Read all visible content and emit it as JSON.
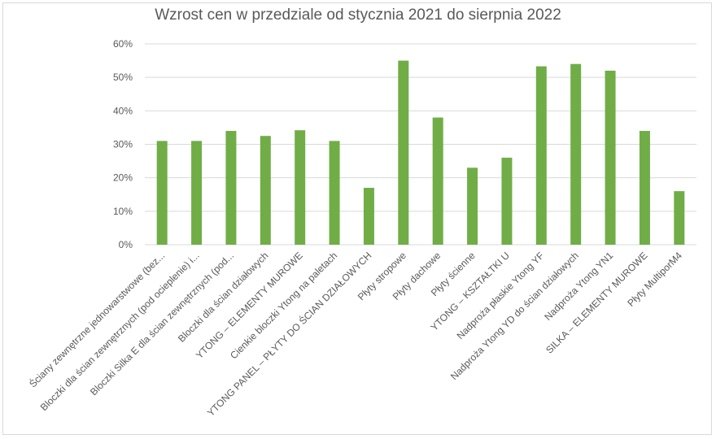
{
  "chart_data": {
    "type": "bar",
    "title": "Wzrost cen w przedziale od stycznia 2021 do sierpnia 2022",
    "xlabel": "",
    "ylabel": "",
    "categories": [
      "Ściany zewnętrzne jednowarstwowe (bez...",
      "Bloczki dla ścian zewnętrznych (pod ocieplenie) i...",
      "Bloczki Silka E dla ścian zewnętrznych (pod...",
      "Bloczki dla ścian działowych",
      "YTONG – ELEMENTY MUROWE",
      "Cienkie bloczki Ytong na paletach",
      "YTONG PANEL – PŁYTY DO ŚCIAN DZIAŁOWYCH",
      "Płyty stropowe",
      "Płyty dachowe",
      "Płyty ścienne",
      "YTONG – KSZTAŁTKI U",
      "Nadproża płaskie Ytong YF",
      "Nadproża Ytong YD do ścian działowych",
      "Nadproża Ytong YN1",
      "SILKA – ELEMENTY MUROWE",
      "Płyty MultiporM4"
    ],
    "values": [
      31,
      31,
      34,
      32.5,
      34.2,
      31,
      17,
      55,
      38,
      23,
      26,
      53.3,
      54,
      52,
      34,
      16
    ],
    "ylim": [
      0,
      60
    ],
    "yticks": [
      "0%",
      "10%",
      "20%",
      "30%",
      "40%",
      "50%",
      "60%"
    ],
    "grid": true,
    "legend": "none",
    "bar_color": "#70ad47"
  }
}
